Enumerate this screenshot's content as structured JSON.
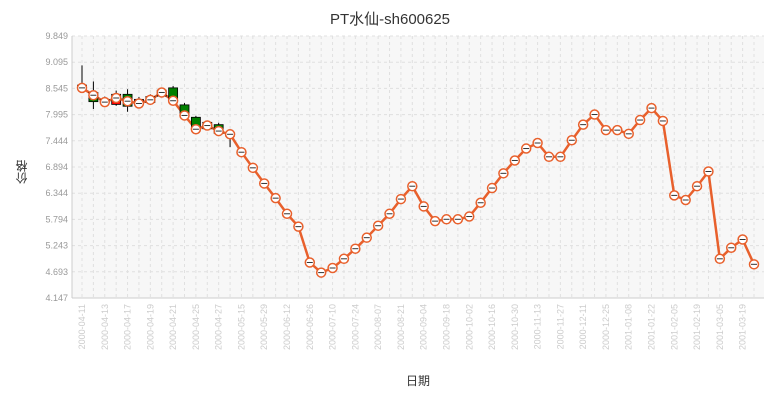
{
  "chart_data": {
    "type": "line",
    "title": "PT水仙-sh600625",
    "xlabel": "日期",
    "ylabel": "价格",
    "ylim": [
      4.147,
      9.849
    ],
    "yticks": [
      "9.849",
      "9.095",
      "8.545",
      "7.995",
      "7.444",
      "6.894",
      "6.344",
      "5.794",
      "5.243",
      "4.693",
      "4.147"
    ],
    "grid": true,
    "colors": {
      "line": "#e8602c",
      "candle_up": "#ff0000",
      "candle_down": "#008000",
      "grid": "#e0e0e0",
      "plot_bg": "#f7f7f7"
    },
    "x": [
      "2000-04-11",
      "2000-04-12",
      "2000-04-13",
      "2000-04-14",
      "2000-04-17",
      "2000-04-18",
      "2000-04-19",
      "2000-04-20",
      "2000-04-21",
      "2000-04-24",
      "2000-04-25",
      "2000-04-26",
      "2000-04-27",
      "2000-04-28",
      "2000-05-15",
      "2000-05-22",
      "2000-05-29",
      "2000-06-05",
      "2000-06-12",
      "2000-06-19",
      "2000-06-26",
      "2000-07-03",
      "2000-07-10",
      "2000-07-17",
      "2000-07-24",
      "2000-07-31",
      "2000-08-07",
      "2000-08-14",
      "2000-08-21",
      "2000-08-28",
      "2000-09-04",
      "2000-09-11",
      "2000-09-18",
      "2000-09-25",
      "2000-10-02",
      "2000-10-09",
      "2000-10-16",
      "2000-10-23",
      "2000-10-30",
      "2000-11-06",
      "2000-11-13",
      "2000-11-20",
      "2000-11-27",
      "2000-12-04",
      "2000-12-11",
      "2000-12-18",
      "2000-12-25",
      "2001-01-01",
      "2001-01-08",
      "2001-01-15",
      "2001-01-22",
      "2001-01-29",
      "2001-02-05",
      "2001-02-12",
      "2001-02-19",
      "2001-02-26",
      "2001-03-05",
      "2001-03-12",
      "2001-03-19",
      "2001-03-26"
    ],
    "x_tick_labels": [
      "2000-04-11",
      "2000-04-13",
      "2000-04-17",
      "2000-04-19",
      "2000-04-21",
      "2000-04-25",
      "2000-04-27",
      "2000-05-15",
      "2000-05-29",
      "2000-06-12",
      "2000-06-26",
      "2000-07-10",
      "2000-07-24",
      "2000-08-07",
      "2000-08-21",
      "2000-09-04",
      "2000-09-18",
      "2000-10-02",
      "2000-10-16",
      "2000-10-30",
      "2000-11-13",
      "2000-11-27",
      "2000-12-11",
      "2000-12-25",
      "2001-01-08",
      "2001-01-22",
      "2001-02-05",
      "2001-02-19",
      "2001-03-05",
      "2001-03-19"
    ],
    "series": [
      {
        "name": "",
        "type": "line",
        "values": [
          8.72,
          8.56,
          8.41,
          8.5,
          8.43,
          8.38,
          8.46,
          8.62,
          8.44,
          8.12,
          7.82,
          7.9,
          7.78,
          7.71,
          7.32,
          6.98,
          6.64,
          6.32,
          5.98,
          5.7,
          4.92,
          4.7,
          4.8,
          5.0,
          5.22,
          5.46,
          5.72,
          5.98,
          6.3,
          6.58,
          6.14,
          5.82,
          5.86,
          5.86,
          5.92,
          6.22,
          6.54,
          6.86,
          7.14,
          7.4,
          7.52,
          7.22,
          7.22,
          7.58,
          7.92,
          8.14,
          7.8,
          7.8,
          7.72,
          8.02,
          8.28,
          8.0,
          6.38,
          6.28,
          6.58,
          6.9,
          5.0,
          5.24,
          5.42,
          4.88
        ]
      }
    ],
    "candles": [
      {
        "x": "2000-04-11",
        "open": 8.7,
        "close": 8.78,
        "high": 9.21,
        "low": 8.64
      },
      {
        "x": "2000-04-12",
        "open": 8.62,
        "close": 8.42,
        "high": 8.86,
        "low": 8.26
      },
      {
        "x": "2000-04-13",
        "open": 8.42,
        "close": 8.47,
        "high": 8.53,
        "low": 8.31
      },
      {
        "x": "2000-04-14",
        "open": 8.36,
        "close": 8.58,
        "high": 8.66,
        "low": 8.33
      },
      {
        "x": "2000-04-17",
        "open": 8.58,
        "close": 8.32,
        "high": 8.69,
        "low": 8.2
      },
      {
        "x": "2000-04-18",
        "open": 8.37,
        "close": 8.47,
        "high": 8.52,
        "low": 8.33
      },
      {
        "x": "2000-04-19",
        "open": 8.4,
        "close": 8.53,
        "high": 8.58,
        "low": 8.36
      },
      {
        "x": "2000-04-20",
        "open": 8.54,
        "close": 8.67,
        "high": 8.71,
        "low": 8.51
      },
      {
        "x": "2000-04-21",
        "open": 8.72,
        "close": 8.45,
        "high": 8.76,
        "low": 8.4
      },
      {
        "x": "2000-04-24",
        "open": 8.35,
        "close": 8.13,
        "high": 8.39,
        "low": 8.08
      },
      {
        "x": "2000-04-25",
        "open": 8.08,
        "close": 7.8,
        "high": 8.11,
        "low": 7.76
      },
      {
        "x": "2000-04-26",
        "open": 7.83,
        "close": 7.97,
        "high": 8.01,
        "low": 7.8
      },
      {
        "x": "2000-04-27",
        "open": 7.92,
        "close": 7.73,
        "high": 7.96,
        "low": 7.7
      },
      {
        "x": "2000-04-28",
        "open": 7.72,
        "close": 7.72,
        "high": 7.8,
        "low": 7.43
      }
    ]
  }
}
